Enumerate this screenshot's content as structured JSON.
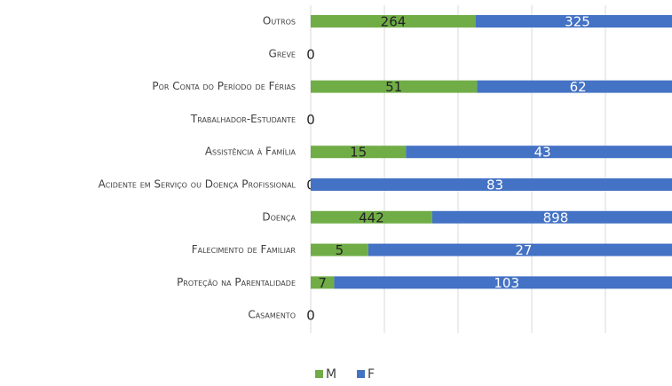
{
  "chart_data": {
    "type": "bar",
    "orientation": "horizontal",
    "stacked": "percent",
    "categories": [
      "Outros",
      "Greve",
      "Por Conta do Período de Férias",
      "Trabalhador-Estudante",
      "Assistência à Família",
      "Acidente em Serviço ou Doença Profissional",
      "Doença",
      "Falecimento de Familiar",
      "Proteção na Parentalidade",
      "Casamento"
    ],
    "series": [
      {
        "name": "M",
        "color": "#70ad47",
        "label_color": "#222222",
        "values": [
          264,
          0,
          51,
          0,
          15,
          0,
          442,
          5,
          7,
          0
        ]
      },
      {
        "name": "F",
        "color": "#4472c4",
        "label_color": "#ffffff",
        "values": [
          325,
          null,
          62,
          null,
          43,
          83,
          898,
          27,
          103,
          null
        ]
      }
    ],
    "xlim": [
      0,
      100
    ],
    "xticks": [
      0,
      20,
      40,
      60,
      80,
      100
    ],
    "grid": true,
    "legend": "bottom"
  }
}
